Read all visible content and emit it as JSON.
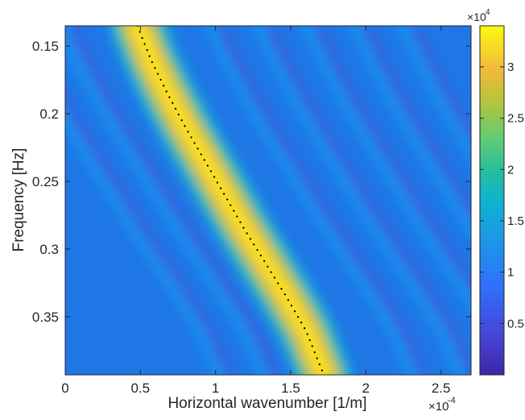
{
  "chart_data": {
    "type": "heatmap",
    "title": "",
    "xlabel": "Horizontal wavenumber [1/m]",
    "ylabel": "Frequency [Hz]",
    "x_multiplier_label": "×10",
    "x_multiplier_exp": "-4",
    "x_range": [
      0,
      2.7
    ],
    "x_units_scale": 0.0001,
    "x_ticks": [
      0,
      0.5,
      1,
      1.5,
      2,
      2.5
    ],
    "x_tick_labels": [
      "0",
      "0.5",
      "1",
      "1.5",
      "2",
      "2.5"
    ],
    "y_range": [
      0.135,
      0.393
    ],
    "y_reversed": true,
    "y_ticks": [
      0.15,
      0.2,
      0.25,
      0.3,
      0.35
    ],
    "y_tick_labels": [
      "0.15",
      "0.2",
      "0.25",
      "0.3",
      "0.35"
    ],
    "colormap": "parula",
    "colorbar": {
      "range": [
        0,
        34000
      ],
      "multiplier_label": "×10",
      "multiplier_exp": "4",
      "ticks": [
        5000,
        10000,
        15000,
        20000,
        25000,
        30000
      ],
      "tick_labels": [
        "0.5",
        "1",
        "1.5",
        "2",
        "2.5",
        "3"
      ]
    },
    "dispersion_curve": {
      "style": "dotted",
      "color": "#000000",
      "x": [
        0.48,
        0.57,
        0.68,
        0.8,
        0.93,
        1.06,
        1.19,
        1.33,
        1.47,
        1.6,
        1.72
      ],
      "y": [
        0.135,
        0.16,
        0.185,
        0.21,
        0.235,
        0.26,
        0.285,
        0.31,
        0.335,
        0.36,
        0.393
      ]
    },
    "main_ridge_peak": 34000,
    "secondary_ridges": 7,
    "grid": false
  }
}
